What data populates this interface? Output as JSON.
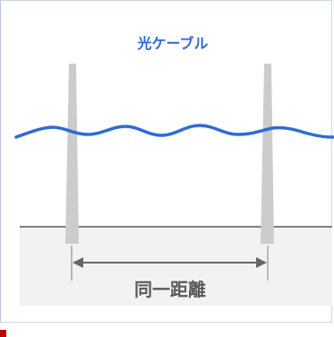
{
  "diagram": {
    "cable_label": "光ケーブル",
    "distance_label": "同一距離"
  },
  "colors": {
    "cable": "#2f6bd6",
    "cable_label": "#2f6bd6",
    "pole": "#cccccc",
    "ground": "#f2f2f2",
    "ground_line": "#7f7f7f",
    "arrow": "#666666",
    "text": "#595959"
  },
  "icons": {
    "marker": "red-marker"
  }
}
